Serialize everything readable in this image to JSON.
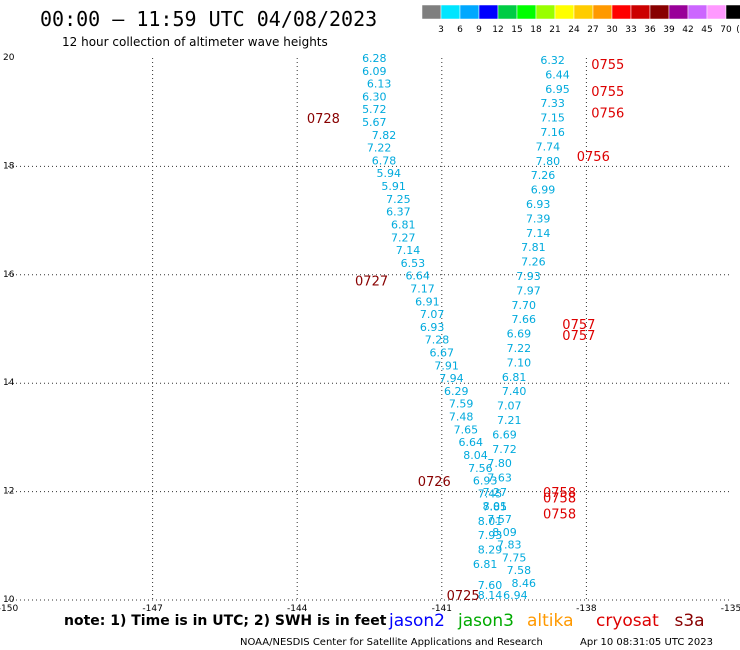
{
  "title": "00:00 – 11:59 UTC 04/08/2023",
  "subtitle": "12 hour collection of altimeter wave heights",
  "color_scale": {
    "colors": [
      "#7f7f7f",
      "#00e5ff",
      "#00a8ff",
      "#0000ff",
      "#00cc44",
      "#00ff00",
      "#99ff00",
      "#ffff00",
      "#ffcc00",
      "#ff9900",
      "#ff0000",
      "#cc0000",
      "#880000",
      "#990099",
      "#cc66ff",
      "#ff99ff",
      "#000000"
    ],
    "labels": [
      "3",
      "6",
      "9",
      "12",
      "15",
      "18",
      "21",
      "24",
      "27",
      "30",
      "33",
      "36",
      "39",
      "42",
      "45",
      "70"
    ],
    "unit": "(ft)"
  },
  "note": "note:  1) Time is in UTC;  2) SWH is in feet",
  "satellites": [
    {
      "name": "jason2",
      "color": "#0000ff"
    },
    {
      "name": "jason3",
      "color": "#00aa00"
    },
    {
      "name": "altika",
      "color": "#ff9900"
    },
    {
      "name": "cryosat",
      "color": "#dd0000"
    },
    {
      "name": "s3a",
      "color": "#880000"
    }
  ],
  "footer": {
    "credit": "NOAA/NESDIS Center for Satellite Applications and Research",
    "timestamp": "Apr 10 08:31:05 UTC 2023"
  },
  "chart_data": {
    "type": "scatter",
    "xlim": [
      -150,
      -135
    ],
    "ylim": [
      10,
      20
    ],
    "x_ticks": [
      "-150",
      "-147",
      "-144",
      "-141",
      "-138",
      "-135"
    ],
    "y_ticks": [
      "20",
      "18",
      "16",
      "14",
      "12",
      "10"
    ],
    "grid": true,
    "point_color": "#00aadd",
    "label_color": "#880000",
    "label_color_2": "#dd0000",
    "track_west": {
      "x": [
        -142.4,
        -142.4,
        -142.3,
        -142.4,
        -142.4,
        -142.4,
        -142.2,
        -142.3,
        -142.2,
        -142.1,
        -142.0,
        -141.9,
        -141.9,
        -141.8,
        -141.8,
        -141.7,
        -141.6,
        -141.5,
        -141.4,
        -141.3,
        -141.2,
        -141.2,
        -141.1,
        -141.0,
        -140.9,
        -140.8,
        -140.7,
        -140.6,
        -140.6,
        -140.5,
        -140.4,
        -140.3,
        -140.2,
        -140.1,
        -140.0,
        -139.9,
        -139.8,
        -139.7,
        -139.6,
        -139.5,
        -139.4,
        -139.3
      ],
      "swh": [
        "6.28",
        "6.09",
        "6.13",
        "6.30",
        "5.72",
        "5.67",
        "7.82",
        "7.22",
        "6.78",
        "5.94",
        "5.91",
        "7.25",
        "6.37",
        "6.81",
        "7.27",
        "7.14",
        "6.53",
        "6.64",
        "7.17",
        "6.91",
        "7.07",
        "6.93",
        "7.28",
        "6.67",
        "7.91",
        "7.94",
        "6.29",
        "7.59",
        "7.48",
        "7.65",
        "6.64",
        "8.04",
        "7.56",
        "6.93",
        "7.45",
        "8.01",
        "7.57",
        "8.09",
        "7.83",
        "7.75",
        "7.58",
        "8.46"
      ]
    },
    "track_west_end": {
      "x": -139.1,
      "lat": 10.0,
      "swh": "6.94"
    },
    "track_east": {
      "x": [
        -138.7,
        -138.6,
        -138.6,
        -138.7,
        -138.7,
        -138.7,
        -138.8,
        -138.8,
        -138.9,
        -138.9,
        -139.0,
        -139.0,
        -139.0,
        -139.1,
        -139.1,
        -139.2,
        -139.2,
        -139.3,
        -139.3,
        -139.4,
        -139.4,
        -139.4,
        -139.5,
        -139.5,
        -139.6,
        -139.6,
        -139.7,
        -139.7,
        -139.8,
        -139.8,
        -139.9,
        -139.9,
        -140.0,
        -140.0,
        -140.0,
        -140.1
      ],
      "swh": [
        "6.32",
        "6.44",
        "6.95",
        "7.33",
        "7.15",
        "7.16",
        "7.74",
        "7.80",
        "7.26",
        "6.99",
        "6.93",
        "7.39",
        "7.14",
        "7.81",
        "7.26",
        "7.93",
        "7.97",
        "7.70",
        "7.66",
        "6.69",
        "7.22",
        "7.10",
        "6.81",
        "7.40",
        "7.07",
        "7.21",
        "6.69",
        "7.72",
        "7.80",
        "7.63",
        "7.27",
        "7.85",
        "8.01",
        "7.93",
        "8.29",
        "6.81"
      ]
    },
    "track_east_end": {
      "swh": [
        "7.60",
        "8.14"
      ]
    },
    "time_labels": [
      {
        "text": "0728",
        "x": -143.8,
        "lat": 18.8
      },
      {
        "text": "0727",
        "x": -142.8,
        "lat": 15.8
      },
      {
        "text": "0726",
        "x": -141.5,
        "lat": 12.1
      },
      {
        "text": "0725",
        "x": -140.9,
        "lat": 10.0
      },
      {
        "text": "0755",
        "x": -137.9,
        "lat": 19.8
      },
      {
        "text": "0755",
        "x": -137.9,
        "lat": 19.3
      },
      {
        "text": "0756",
        "x": -137.9,
        "lat": 18.9
      },
      {
        "text": "0756",
        "x": -138.2,
        "lat": 18.1
      },
      {
        "text": "0757",
        "x": -138.5,
        "lat": 15.0
      },
      {
        "text": "0757",
        "x": -138.5,
        "lat": 14.8
      },
      {
        "text": "0758",
        "x": -138.9,
        "lat": 11.9
      },
      {
        "text": "0758",
        "x": -138.9,
        "lat": 11.8
      },
      {
        "text": "0758",
        "x": -138.9,
        "lat": 11.5
      }
    ]
  }
}
